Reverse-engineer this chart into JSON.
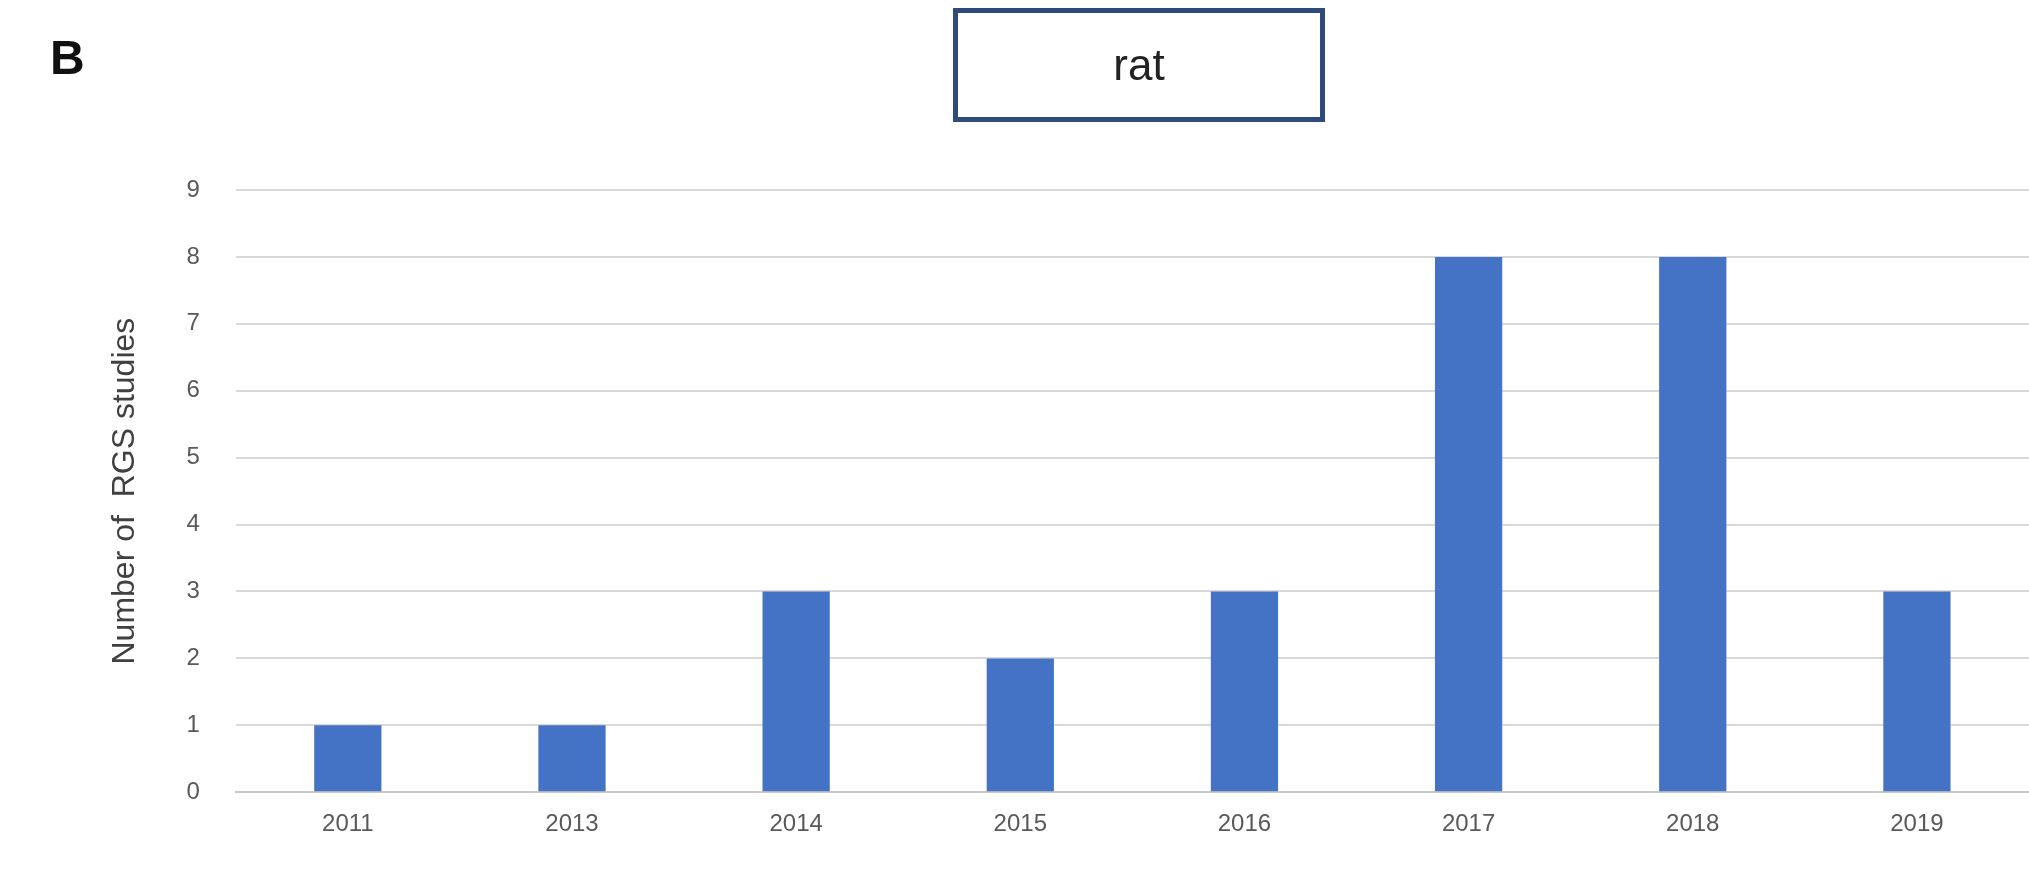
{
  "chart_data": {
    "type": "bar",
    "title": "rat",
    "ylabel": "Number of  RGS studies",
    "annotations": [
      "B"
    ],
    "categories": [
      "2011",
      "2013",
      "2014",
      "2015",
      "2016",
      "2017",
      "2018",
      "2019"
    ],
    "values": [
      1,
      1,
      3,
      2,
      3,
      8,
      8,
      3
    ],
    "color": "#4472c4",
    "ylim": [
      0,
      9
    ],
    "yticks": [
      0,
      1,
      2,
      3,
      4,
      5,
      6,
      7,
      8,
      9
    ],
    "grid": "y",
    "legend": false
  }
}
